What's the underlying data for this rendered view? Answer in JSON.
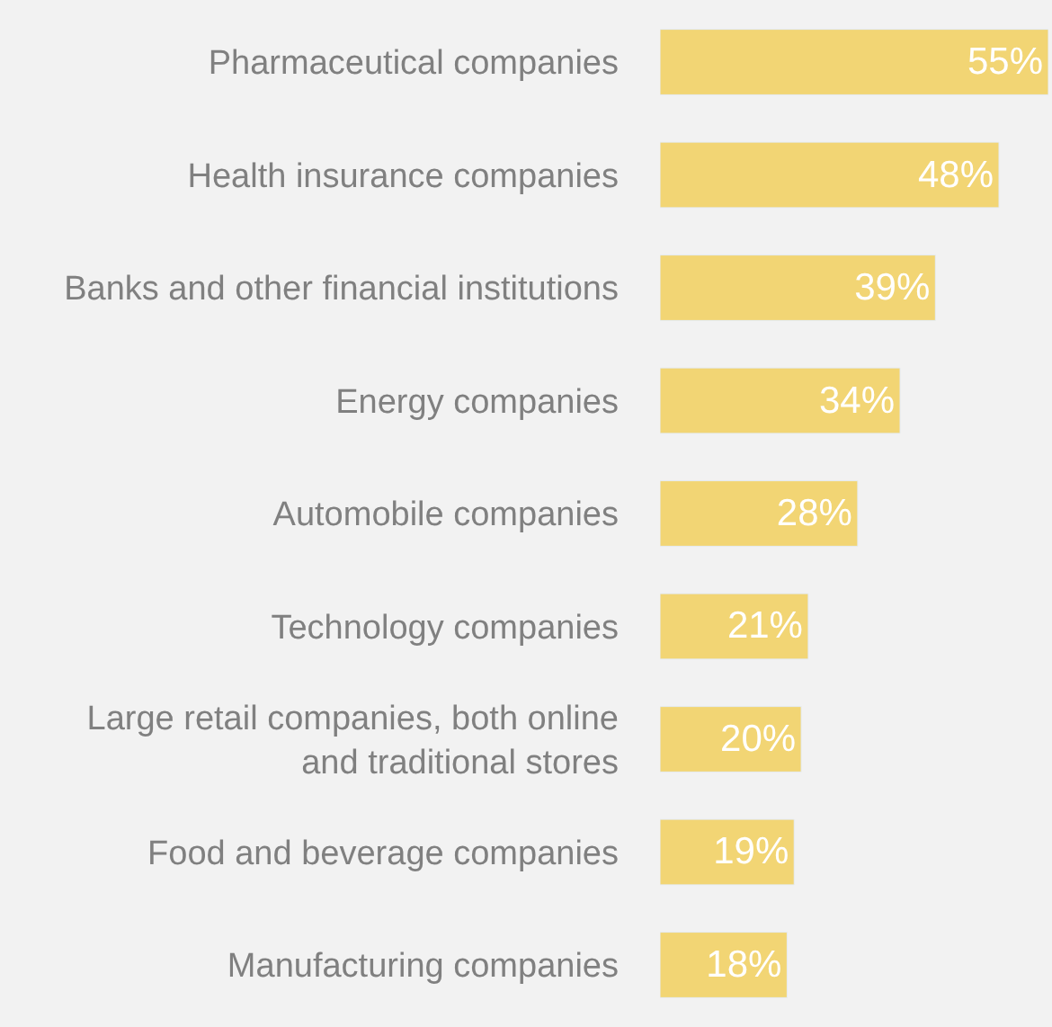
{
  "chart_data": {
    "type": "bar",
    "orientation": "horizontal",
    "categories": [
      "Pharmaceutical companies",
      "Health insurance companies",
      "Banks and other financial institutions",
      "Energy companies",
      "Automobile companies",
      "Technology companies",
      "Large retail companies, both online\nand traditional stores",
      "Food and beverage companies",
      "Manufacturing companies"
    ],
    "values": [
      55,
      48,
      39,
      34,
      28,
      21,
      20,
      19,
      18
    ],
    "value_labels": [
      "55%",
      "48%",
      "39%",
      "34%",
      "28%",
      "21%",
      "20%",
      "19%",
      "18%"
    ],
    "color": "#f2d574",
    "grid": false,
    "legend": false
  }
}
